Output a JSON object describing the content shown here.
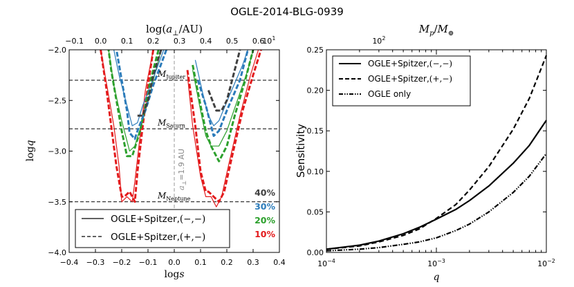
{
  "figure_title": "OGLE-2014-BLG-0939",
  "chart_data": [
    {
      "type": "line",
      "title": "",
      "xlabel": "log s",
      "ylabel": "log q",
      "top_xlabel": "log(a⊥/AU)",
      "xlim": [
        -0.4,
        0.4
      ],
      "ylim": [
        -4.0,
        -2.0
      ],
      "top_xlim": [
        -0.12,
        0.68
      ],
      "xticks": [
        "−0.4",
        "−0.3",
        "−0.2",
        "−0.1",
        "0.0",
        "0.1",
        "0.2",
        "0.3",
        "0.4"
      ],
      "yticks": [
        "−4.0",
        "−3.5",
        "−3.0",
        "−2.5",
        "−2.0"
      ],
      "top_xticks": [
        "−0.1",
        "0.0",
        "0.1",
        "0.2",
        "0.3",
        "0.4",
        "0.5",
        "0.6"
      ],
      "reference_lines": [
        {
          "label": "M_Jupiter",
          "main": "M",
          "sub": "Jupiter",
          "logq": -2.3
        },
        {
          "label": "M_Saturn",
          "main": "M",
          "sub": "Saturn",
          "logq": -2.78
        },
        {
          "label": "M_Neptune",
          "main": "M",
          "sub": "Neptune",
          "logq": -3.5
        }
      ],
      "vertical_line": {
        "logs": 0.0,
        "label": "a⊥ = 1.9 AU",
        "label_main": "a",
        "label_sub": "⊥",
        "label_eq": "=1.9 AU"
      },
      "legend": {
        "position": "bottom-center",
        "entries": [
          {
            "name": "OGLE+Spitzer,",
            "paren": "(−,−)",
            "style": "solid"
          },
          {
            "name": "OGLE+Spitzer,",
            "paren": "(+,−)",
            "style": "dashed"
          }
        ]
      },
      "level_labels": [
        {
          "label": "40%",
          "color": "#404040"
        },
        {
          "label": "30%",
          "color": "#2b7bba"
        },
        {
          "label": "20%",
          "color": "#2ca02c"
        },
        {
          "label": "10%",
          "color": "#e31a1c"
        }
      ],
      "series": [
        {
          "name": "40%",
          "color": "#404040",
          "style": "dashed",
          "left": [
            [
              -0.05,
              -2.0
            ],
            [
              -0.08,
              -2.25
            ],
            [
              -0.1,
              -2.5
            ],
            [
              -0.12,
              -2.65
            ],
            [
              -0.14,
              -2.65
            ]
          ],
          "right": [
            [
              0.13,
              -2.4
            ],
            [
              0.16,
              -2.6
            ],
            [
              0.18,
              -2.6
            ],
            [
              0.2,
              -2.5
            ],
            [
              0.23,
              -2.2
            ],
            [
              0.25,
              -2.0
            ]
          ]
        },
        {
          "name": "30%",
          "color": "#2b7bba",
          "style": "dashed",
          "left": [
            [
              -0.03,
              -2.0
            ],
            [
              -0.08,
              -2.35
            ],
            [
              -0.11,
              -2.6
            ],
            [
              -0.14,
              -2.8
            ],
            [
              -0.15,
              -2.88
            ],
            [
              -0.17,
              -2.82
            ],
            [
              -0.18,
              -2.6
            ],
            [
              -0.2,
              -2.3
            ],
            [
              -0.22,
              -2.0
            ]
          ],
          "right": [
            [
              0.09,
              -2.3
            ],
            [
              0.12,
              -2.55
            ],
            [
              0.14,
              -2.75
            ],
            [
              0.15,
              -2.85
            ],
            [
              0.17,
              -2.8
            ],
            [
              0.2,
              -2.6
            ],
            [
              0.25,
              -2.3
            ],
            [
              0.28,
              -2.0
            ]
          ]
        },
        {
          "name": "30%",
          "color": "#2b7bba",
          "style": "solid",
          "left": [
            [
              -0.04,
              -2.0
            ],
            [
              -0.09,
              -2.35
            ],
            [
              -0.12,
              -2.55
            ],
            [
              -0.14,
              -2.72
            ],
            [
              -0.16,
              -2.75
            ],
            [
              -0.18,
              -2.55
            ],
            [
              -0.21,
              -2.25
            ],
            [
              -0.23,
              -2.0
            ]
          ],
          "right": [
            [
              0.08,
              -2.1
            ],
            [
              0.11,
              -2.45
            ],
            [
              0.13,
              -2.65
            ],
            [
              0.15,
              -2.75
            ],
            [
              0.17,
              -2.7
            ],
            [
              0.21,
              -2.45
            ],
            [
              0.26,
              -2.15
            ],
            [
              0.28,
              -2.0
            ]
          ]
        },
        {
          "name": "20%",
          "color": "#2ca02c",
          "style": "dashed",
          "left": [
            [
              -0.06,
              -2.0
            ],
            [
              -0.09,
              -2.3
            ],
            [
              -0.11,
              -2.55
            ],
            [
              -0.13,
              -2.8
            ],
            [
              -0.16,
              -3.05
            ],
            [
              -0.18,
              -3.05
            ],
            [
              -0.2,
              -2.8
            ],
            [
              -0.22,
              -2.5
            ],
            [
              -0.24,
              -2.2
            ],
            [
              -0.25,
              -2.0
            ]
          ],
          "right": [
            [
              0.07,
              -2.15
            ],
            [
              0.1,
              -2.55
            ],
            [
              0.12,
              -2.8
            ],
            [
              0.14,
              -2.95
            ],
            [
              0.17,
              -3.1
            ],
            [
              0.2,
              -2.95
            ],
            [
              0.23,
              -2.65
            ],
            [
              0.27,
              -2.3
            ],
            [
              0.3,
              -2.0
            ]
          ]
        },
        {
          "name": "20%",
          "color": "#2ca02c",
          "style": "solid",
          "left": [
            [
              -0.05,
              -2.0
            ],
            [
              -0.09,
              -2.4
            ],
            [
              -0.12,
              -2.7
            ],
            [
              -0.15,
              -2.95
            ],
            [
              -0.17,
              -3.0
            ],
            [
              -0.2,
              -2.7
            ],
            [
              -0.23,
              -2.35
            ],
            [
              -0.25,
              -2.0
            ]
          ],
          "right": [
            [
              0.07,
              -2.2
            ],
            [
              0.1,
              -2.6
            ],
            [
              0.12,
              -2.85
            ],
            [
              0.14,
              -2.95
            ],
            [
              0.17,
              -2.95
            ],
            [
              0.2,
              -2.8
            ],
            [
              0.24,
              -2.5
            ],
            [
              0.28,
              -2.2
            ],
            [
              0.3,
              -2.0
            ]
          ]
        },
        {
          "name": "10%",
          "color": "#e31a1c",
          "style": "dashed",
          "left": [
            [
              -0.08,
              -2.0
            ],
            [
              -0.1,
              -2.35
            ],
            [
              -0.12,
              -2.75
            ],
            [
              -0.14,
              -3.2
            ],
            [
              -0.15,
              -3.5
            ],
            [
              -0.17,
              -3.4
            ],
            [
              -0.19,
              -3.45
            ],
            [
              -0.2,
              -3.45
            ],
            [
              -0.22,
              -3.15
            ],
            [
              -0.24,
              -2.75
            ],
            [
              -0.26,
              -2.35
            ],
            [
              -0.28,
              -2.0
            ]
          ],
          "right": [
            [
              0.05,
              -2.2
            ],
            [
              0.08,
              -2.75
            ],
            [
              0.1,
              -3.2
            ],
            [
              0.12,
              -3.4
            ],
            [
              0.13,
              -3.4
            ],
            [
              0.15,
              -3.45
            ],
            [
              0.17,
              -3.5
            ],
            [
              0.19,
              -3.4
            ],
            [
              0.22,
              -3.05
            ],
            [
              0.26,
              -2.6
            ],
            [
              0.3,
              -2.25
            ],
            [
              0.33,
              -2.0
            ]
          ]
        },
        {
          "name": "10%",
          "color": "#e31a1c",
          "style": "solid",
          "left": [
            [
              -0.08,
              -2.0
            ],
            [
              -0.11,
              -2.4
            ],
            [
              -0.13,
              -2.85
            ],
            [
              -0.15,
              -3.3
            ],
            [
              -0.16,
              -3.5
            ],
            [
              -0.18,
              -3.45
            ],
            [
              -0.2,
              -3.5
            ],
            [
              -0.21,
              -3.15
            ],
            [
              -0.23,
              -2.75
            ],
            [
              -0.26,
              -2.3
            ],
            [
              -0.28,
              -2.0
            ]
          ],
          "right": [
            [
              0.05,
              -2.25
            ],
            [
              0.07,
              -2.75
            ],
            [
              0.1,
              -3.25
            ],
            [
              0.12,
              -3.45
            ],
            [
              0.14,
              -3.45
            ],
            [
              0.16,
              -3.55
            ],
            [
              0.18,
              -3.45
            ],
            [
              0.21,
              -3.1
            ],
            [
              0.25,
              -2.65
            ],
            [
              0.29,
              -2.25
            ],
            [
              0.32,
              -2.0
            ]
          ]
        }
      ]
    },
    {
      "type": "line",
      "title": "",
      "xlabel": "q",
      "ylabel": "Sensitivity",
      "top_xlabel": "Mp/M⊕",
      "top_xlabel_main": "M",
      "top_xlabel_sub_p": "p",
      "top_xlabel_sub_e": "⊕",
      "xscale": "log",
      "xlim": [
        0.0001,
        0.01
      ],
      "ylim": [
        0.0,
        0.25
      ],
      "xticks": [
        {
          "base": "10",
          "exp": "−4",
          "value": 0.0001
        },
        {
          "base": "10",
          "exp": "−3",
          "value": 0.001
        },
        {
          "base": "10",
          "exp": "−2",
          "value": 0.01
        }
      ],
      "yticks": [
        "0.00",
        "0.05",
        "0.10",
        "0.15",
        "0.20",
        "0.25"
      ],
      "top_xticks": [
        {
          "base": "10",
          "exp": "1",
          "q": 3e-05
        },
        {
          "base": "10",
          "exp": "2",
          "q": 0.0003
        }
      ],
      "legend": {
        "position": "top-left",
        "entries": [
          {
            "name": "OGLE+Spitzer,",
            "paren": "(−,−)",
            "style": "solid"
          },
          {
            "name": "OGLE+Spitzer,",
            "paren": "(+,−)",
            "style": "dashed"
          },
          {
            "name": "OGLE only",
            "paren": "",
            "style": "dashdotdot"
          }
        ]
      },
      "series": [
        {
          "name": "OGLE+Spitzer,(−,−)",
          "style": "solid",
          "x": [
            0.0001,
            0.0002,
            0.0003,
            0.0005,
            0.0007,
            0.001,
            0.0015,
            0.002,
            0.003,
            0.005,
            0.007,
            0.01
          ],
          "y": [
            0.004,
            0.009,
            0.014,
            0.023,
            0.031,
            0.041,
            0.053,
            0.064,
            0.082,
            0.11,
            0.132,
            0.163
          ]
        },
        {
          "name": "OGLE+Spitzer,(+,−)",
          "style": "dashed",
          "x": [
            0.0001,
            0.0002,
            0.0003,
            0.0005,
            0.0007,
            0.001,
            0.0015,
            0.002,
            0.003,
            0.005,
            0.007,
            0.01
          ],
          "y": [
            0.004,
            0.008,
            0.013,
            0.021,
            0.029,
            0.042,
            0.059,
            0.077,
            0.106,
            0.152,
            0.19,
            0.243
          ]
        },
        {
          "name": "OGLE only",
          "style": "dashdotdot",
          "x": [
            0.0001,
            0.0002,
            0.0003,
            0.0005,
            0.0007,
            0.001,
            0.0015,
            0.002,
            0.003,
            0.005,
            0.007,
            0.01
          ],
          "y": [
            0.002,
            0.004,
            0.006,
            0.01,
            0.013,
            0.018,
            0.027,
            0.035,
            0.05,
            0.074,
            0.094,
            0.122
          ]
        }
      ]
    }
  ]
}
